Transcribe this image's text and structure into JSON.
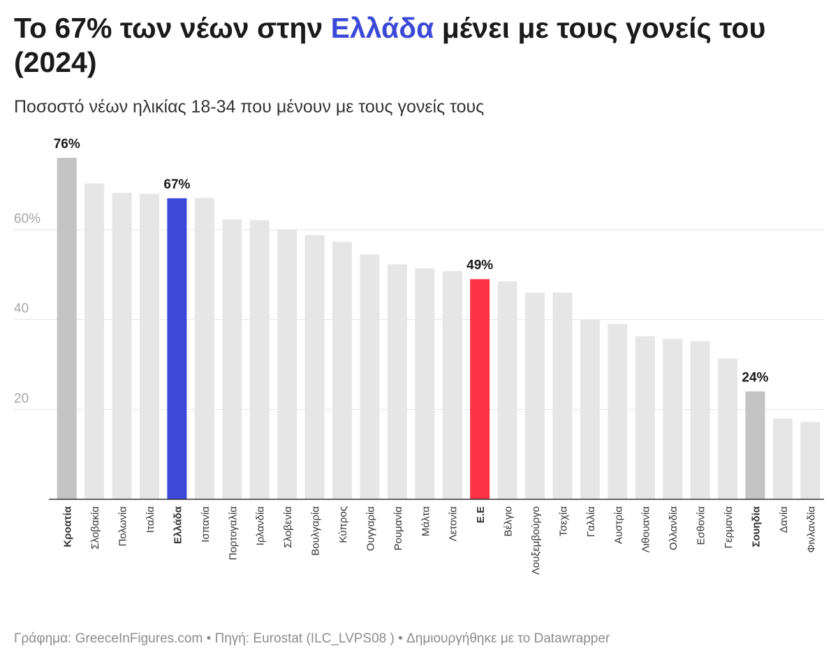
{
  "title": {
    "before": "Το 67% των νέων στην ",
    "highlight": "Ελλάδα",
    "after": " μένει με τους γονείς του (2024)"
  },
  "subtitle": "Ποσοστό νέων ηλικίας 18-34 που μένουν με τους γονείς τους",
  "footer": {
    "text": "Γράφημα: GreeceInFigures.com • Πηγή: Eurostat (ILC_LVPS08 ) • Δημιουργήθηκε με το Datawrapper"
  },
  "colors": {
    "highlight_blue": "#3b48d8",
    "highlight_red": "#fb3344",
    "highlight_grey": "#c4c4c4",
    "default_bar": "#e6e6e6",
    "gridline": "#e3e3e3",
    "tick_label": "#a6a6a6",
    "baseline": "#333333"
  },
  "chart_data": {
    "type": "bar",
    "ylim": [
      0,
      76
    ],
    "yticks": [
      20,
      40,
      60
    ],
    "ytick_labels": [
      "20",
      "40",
      "60%"
    ],
    "grid": true,
    "categories": [
      "Κροατία",
      "Σλοβακία",
      "Πολωνία",
      "Ιταλία",
      "Ελλάδα",
      "Ισπανία",
      "Πορτογαλία",
      "Ιρλανδία",
      "Σλοβενία",
      "Βουλγαρία",
      "Κύπρος",
      "Ουγγαρία",
      "Ρουμανία",
      "Μάλτα",
      "Λετονία",
      "Ε.Ε",
      "Βέλγιο",
      "Λουξεμβούργο",
      "Τσεχία",
      "Γαλλία",
      "Αυστρία",
      "Λιθουανία",
      "Ολλανδία",
      "Εσθονία",
      "Γερμανία",
      "Σουηδία",
      "Δανία",
      "Φινλανδία"
    ],
    "values": [
      76,
      70.3,
      68.2,
      68,
      67,
      67.1,
      62.3,
      62.1,
      59.9,
      58.8,
      57.3,
      54.5,
      52.3,
      51.4,
      50.8,
      49,
      48.5,
      46,
      46,
      40,
      39,
      36.3,
      35.7,
      35.2,
      31.3,
      24,
      18,
      17.2
    ],
    "data_labels": [
      {
        "category": "Κροατία",
        "text": "76%"
      },
      {
        "category": "Ελλάδα",
        "text": "67%"
      },
      {
        "category": "Ε.Ε",
        "text": "49%"
      },
      {
        "category": "Σουηδία",
        "text": "24%"
      }
    ],
    "highlights": {
      "Κροατία": "grey",
      "Ελλάδα": "blue",
      "Ε.Ε": "red",
      "Σουηδία": "grey"
    },
    "bold_categories": [
      "Κροατία",
      "Ελλάδα",
      "Ε.Ε",
      "Σουηδία"
    ]
  }
}
